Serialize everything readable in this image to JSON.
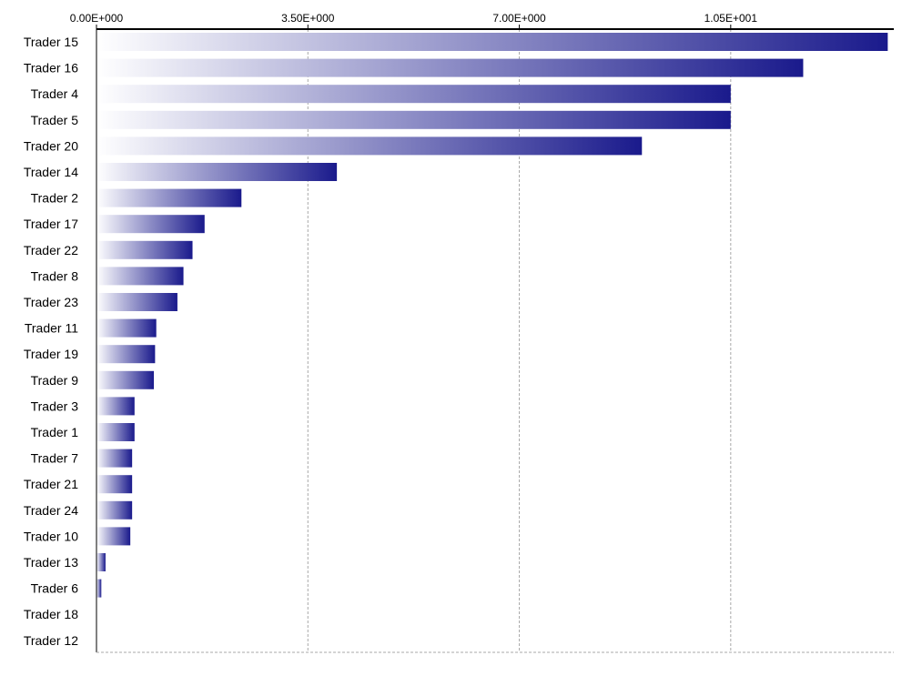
{
  "chart_data": {
    "type": "bar",
    "orientation": "horizontal",
    "title": "",
    "xlabel": "",
    "ylabel": "",
    "xlim": [
      0,
      13.2
    ],
    "x_ticks": [
      0,
      3.5,
      7.0,
      10.5
    ],
    "x_tick_labels": [
      "0.00E+000",
      "3.50E+000",
      "7.00E+000",
      "1.05E+001"
    ],
    "x_axis_position": "top",
    "grid": "vertical dashed",
    "legend": "none",
    "bar_color_light": "#ffffff",
    "bar_color_dark": "#1a1a8c",
    "categories": [
      "Trader 15",
      "Trader 16",
      "Trader 4",
      "Trader 5",
      "Trader 20",
      "Trader 14",
      "Trader 2",
      "Trader 17",
      "Trader 22",
      "Trader 8",
      "Trader 23",
      "Trader 11",
      "Trader 19",
      "Trader 9",
      "Trader 3",
      "Trader 1",
      "Trader 7",
      "Trader 21",
      "Trader 24",
      "Trader 10",
      "Trader 13",
      "Trader 6",
      "Trader 18",
      "Trader 12"
    ],
    "values": [
      13.1,
      11.7,
      10.5,
      10.5,
      9.03,
      3.98,
      2.4,
      1.79,
      1.59,
      1.44,
      1.34,
      0.99,
      0.97,
      0.95,
      0.63,
      0.63,
      0.59,
      0.59,
      0.59,
      0.56,
      0.15,
      0.08,
      0,
      0
    ]
  }
}
